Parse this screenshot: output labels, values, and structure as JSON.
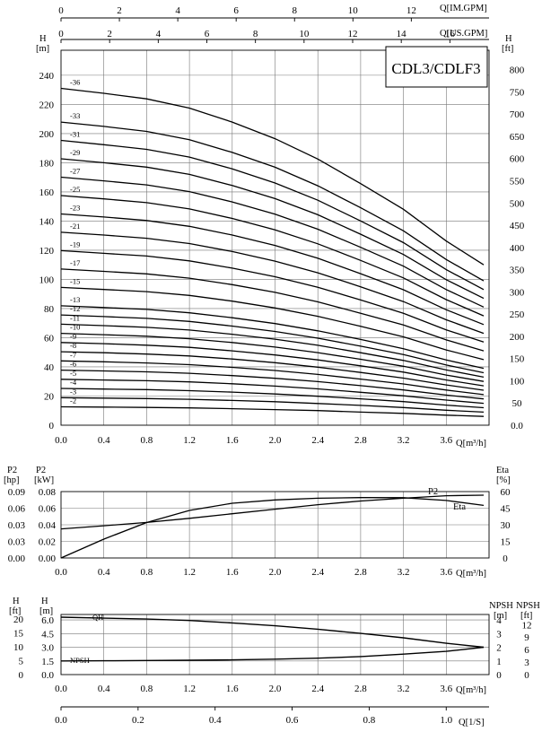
{
  "title": "CDL3/CDLF3",
  "top_axes": {
    "im_gpm": {
      "label": "Q[IM.GPM]",
      "ticks": [
        "0",
        "2",
        "4",
        "6",
        "8",
        "10",
        "12"
      ],
      "per_m3h": 3.666
    },
    "us_gpm": {
      "label": "Q[US.GPM]",
      "ticks": [
        "0",
        "2",
        "4",
        "6",
        "8",
        "10",
        "12",
        "14",
        "16"
      ],
      "per_m3h": 4.403
    }
  },
  "q_ticks": [
    "0.0",
    "0.4",
    "0.8",
    "1.2",
    "1.6",
    "2.0",
    "2.4",
    "2.8",
    "3.2",
    "3.6"
  ],
  "q_label": "Q[m³/h]",
  "head_panel": {
    "y_left_label": "H",
    "y_left_unit": "[m]",
    "y_left_ticks": [
      "0",
      "20",
      "40",
      "60",
      "80",
      "100",
      "120",
      "140",
      "160",
      "180",
      "200",
      "220",
      "240"
    ],
    "y_right_label": "H",
    "y_right_unit": "[ft]",
    "y_right_ticks": [
      "0.0",
      "50",
      "100",
      "150",
      "200",
      "250",
      "300",
      "350",
      "400",
      "450",
      "500",
      "550",
      "600",
      "650",
      "700",
      "750",
      "800"
    ]
  },
  "power_panel": {
    "hp_label": "P2",
    "hp_unit": "[hp]",
    "hp_ticks": [
      "0.00",
      "0.03",
      "0.03",
      "0.06",
      "0.09"
    ],
    "kw_label": "P2",
    "kw_unit": "[kW]",
    "kw_ticks": [
      "0.00",
      "0.02",
      "0.04",
      "0.06",
      "0.08"
    ],
    "eta_label": "Eta",
    "eta_unit": "[%]",
    "eta_ticks": [
      "0",
      "15",
      "30",
      "45",
      "60"
    ],
    "p2_curve_label": "P2",
    "eta_curve_label": "Eta"
  },
  "small_panel": {
    "h_ft_label": "H",
    "h_ft_unit": "[ft]",
    "h_ft_ticks": [
      "0",
      "5",
      "10",
      "15",
      "20"
    ],
    "h_m_label": "H",
    "h_m_unit": "[m]",
    "h_m_ticks": [
      "0.0",
      "1.5",
      "3.0",
      "4.5",
      "6.0"
    ],
    "npsh_m_label": "NPSH",
    "npsh_m_unit": "[m]",
    "npsh_m_ticks": [
      "0",
      "1",
      "2",
      "3",
      "4"
    ],
    "npsh_ft_label": "NPSH",
    "npsh_ft_unit": "[ft]",
    "npsh_ft_ticks": [
      "0",
      "3",
      "6",
      "9",
      "12"
    ],
    "qh_label": "QH",
    "npsh_curve_label": "NPSH"
  },
  "bottom_axis": {
    "label": "Q[1/S]",
    "ticks": [
      "0.0",
      "0.2",
      "0.4",
      "0.6",
      "0.8",
      "1.0"
    ],
    "per_m3h": 0.2778
  },
  "chart_data": [
    {
      "type": "line",
      "title": "CDL3/CDLF3",
      "xlabel": "Q[m³/h]",
      "ylabel": "H [m]",
      "xlim": [
        0,
        4.0
      ],
      "ylim": [
        0,
        250
      ],
      "x": [
        0,
        0.4,
        0.8,
        1.2,
        1.6,
        2.0,
        2.4,
        2.8,
        3.2,
        3.6,
        3.95
      ],
      "series": [
        {
          "name": "-36",
          "values": [
            231,
            227.6,
            223.8,
            217.5,
            207.9,
            196.5,
            182.5,
            165.7,
            148.1,
            126.3,
            110
          ]
        },
        {
          "name": "-33",
          "values": [
            207.9,
            204.9,
            201.5,
            195.8,
            187.1,
            176.9,
            164.2,
            149.1,
            133.3,
            113.6,
            99
          ]
        },
        {
          "name": "-31",
          "values": [
            195.3,
            192.4,
            189.2,
            183.9,
            175.8,
            166.1,
            154.3,
            140.1,
            125.2,
            106.7,
            93
          ]
        },
        {
          "name": "-29",
          "values": [
            182.7,
            180.0,
            177.0,
            172.0,
            164.4,
            155.4,
            144.3,
            131.0,
            117.1,
            99.8,
            87
          ]
        },
        {
          "name": "-27",
          "values": [
            170.1,
            167.6,
            164.8,
            160.2,
            153.1,
            144.7,
            134.4,
            122.0,
            109.1,
            93.0,
            81
          ]
        },
        {
          "name": "-25",
          "values": [
            157.5,
            155.2,
            152.6,
            148.3,
            141.8,
            134.0,
            124.4,
            113.0,
            101.0,
            86.1,
            75
          ]
        },
        {
          "name": "-23",
          "values": [
            144.9,
            142.8,
            140.4,
            136.4,
            130.4,
            123.3,
            114.5,
            103.9,
            92.9,
            79.2,
            69
          ]
        },
        {
          "name": "-21",
          "values": [
            132.3,
            130.4,
            128.2,
            124.6,
            119.1,
            112.5,
            104.5,
            94.9,
            84.8,
            72.3,
            63
          ]
        },
        {
          "name": "-19",
          "values": [
            119.7,
            117.9,
            116.0,
            112.7,
            107.7,
            101.8,
            94.6,
            85.9,
            76.7,
            65.4,
            57
          ]
        },
        {
          "name": "-17",
          "values": [
            107.1,
            105.5,
            103.8,
            100.8,
            96.4,
            91.1,
            84.6,
            76.8,
            68.7,
            58.5,
            51
          ]
        },
        {
          "name": "-15",
          "values": [
            94.5,
            93.1,
            91.6,
            89.0,
            85.1,
            80.4,
            74.7,
            67.8,
            60.6,
            51.6,
            45
          ]
        },
        {
          "name": "-13",
          "values": [
            81.9,
            80.7,
            79.4,
            77.1,
            73.7,
            69.7,
            64.7,
            58.8,
            52.5,
            44.7,
            39
          ]
        },
        {
          "name": "-12",
          "values": [
            75.6,
            74.5,
            73.3,
            71.2,
            68.0,
            64.3,
            59.7,
            54.2,
            48.5,
            41.3,
            36
          ]
        },
        {
          "name": "-11",
          "values": [
            69.3,
            68.3,
            67.1,
            65.3,
            62.4,
            59.0,
            54.8,
            49.7,
            44.4,
            37.9,
            33
          ]
        },
        {
          "name": "-10",
          "values": [
            63.0,
            62.1,
            61.0,
            59.3,
            56.7,
            53.6,
            49.8,
            45.2,
            40.4,
            34.4,
            30
          ]
        },
        {
          "name": "-9",
          "values": [
            56.7,
            55.9,
            54.9,
            53.4,
            51.0,
            48.2,
            44.8,
            40.7,
            36.4,
            31.0,
            27
          ]
        },
        {
          "name": "-8",
          "values": [
            50.4,
            49.7,
            48.8,
            47.5,
            45.4,
            42.9,
            39.8,
            36.2,
            32.3,
            27.6,
            24
          ]
        },
        {
          "name": "-7",
          "values": [
            44.1,
            43.5,
            42.7,
            41.5,
            39.7,
            37.5,
            34.8,
            31.6,
            28.3,
            24.1,
            21
          ]
        },
        {
          "name": "-6",
          "values": [
            37.8,
            37.2,
            36.6,
            35.6,
            34.0,
            32.2,
            29.9,
            27.1,
            24.2,
            20.7,
            18
          ]
        },
        {
          "name": "-5",
          "values": [
            31.5,
            31.0,
            30.5,
            29.7,
            28.4,
            26.8,
            24.9,
            22.6,
            20.2,
            17.2,
            15
          ]
        },
        {
          "name": "-4",
          "values": [
            25.2,
            24.8,
            24.4,
            23.7,
            22.7,
            21.4,
            19.9,
            18.1,
            16.2,
            13.8,
            12
          ]
        },
        {
          "name": "-3",
          "values": [
            18.9,
            18.6,
            18.3,
            17.8,
            17.0,
            16.1,
            14.9,
            13.6,
            12.1,
            10.3,
            9
          ]
        },
        {
          "name": "-2",
          "values": [
            12.6,
            12.4,
            12.2,
            11.9,
            11.3,
            10.7,
            10.0,
            9.0,
            8.1,
            6.9,
            6
          ]
        }
      ]
    },
    {
      "type": "line",
      "xlabel": "Q[m³/h]",
      "ylabel": "P2 [kW]",
      "y2label": "Eta [%]",
      "xlim": [
        0,
        4.0
      ],
      "ylim": [
        0,
        0.08
      ],
      "y2lim": [
        0,
        60
      ],
      "series": [
        {
          "name": "P2",
          "axis": "left",
          "x": [
            0,
            0.4,
            0.8,
            1.2,
            1.6,
            2.0,
            2.4,
            2.8,
            3.2,
            3.6,
            3.95
          ],
          "values": [
            0.035,
            0.0388,
            0.0428,
            0.0478,
            0.0533,
            0.0588,
            0.0642,
            0.0686,
            0.072,
            0.075,
            0.0757
          ]
        },
        {
          "name": "Eta",
          "axis": "right",
          "x": [
            0,
            0.4,
            0.8,
            1.2,
            1.6,
            2.0,
            2.4,
            2.8,
            3.2,
            3.6,
            3.95
          ],
          "values": [
            0,
            17,
            32,
            43,
            49.5,
            52.5,
            54,
            54.6,
            54.5,
            52,
            47.5
          ]
        }
      ]
    },
    {
      "type": "line",
      "xlabel": "Q[m³/h]",
      "ylabel": "H [m]",
      "y2label": "NPSH [m]",
      "xlim": [
        0,
        4.0
      ],
      "ylim": [
        0,
        6.6
      ],
      "y2lim": [
        0,
        4.4
      ],
      "series": [
        {
          "name": "QH",
          "axis": "left",
          "x": [
            0,
            0.4,
            0.8,
            1.2,
            1.6,
            2.0,
            2.4,
            2.8,
            3.2,
            3.6,
            3.95
          ],
          "values": [
            6.3,
            6.2,
            6.1,
            5.94,
            5.67,
            5.36,
            4.98,
            4.52,
            4.04,
            3.44,
            3.0
          ]
        },
        {
          "name": "NPSH",
          "axis": "right",
          "x": [
            0,
            0.4,
            0.8,
            1.2,
            1.6,
            2.0,
            2.4,
            2.8,
            3.2,
            3.6,
            3.95
          ],
          "values": [
            1.0,
            1.01,
            1.03,
            1.05,
            1.08,
            1.13,
            1.2,
            1.32,
            1.5,
            1.7,
            2.0
          ]
        }
      ]
    }
  ]
}
